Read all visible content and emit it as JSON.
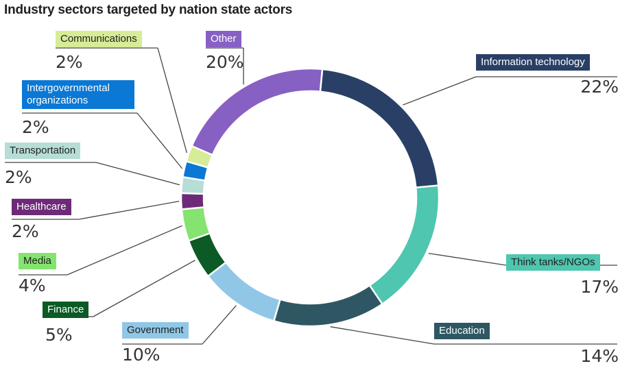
{
  "chart_data": {
    "type": "pie",
    "title": "Industry sectors targeted by nation state actors",
    "categories": [
      "Information technology",
      "Think tanks/NGOs",
      "Education",
      "Government",
      "Finance",
      "Media",
      "Healthcare",
      "Transportation",
      "Intergovernmental organizations",
      "Communications",
      "Other"
    ],
    "values": [
      22,
      17,
      14,
      10,
      5,
      4,
      2,
      2,
      2,
      2,
      20
    ],
    "value_labels": [
      "22%",
      "17%",
      "14%",
      "10%",
      "5%",
      "4%",
      "2%",
      "2%",
      "2%",
      "2%",
      "20%"
    ],
    "colors": [
      "#293f66",
      "#4fc6af",
      "#2e5763",
      "#90c7e6",
      "#0c5a25",
      "#85e36f",
      "#6e2a78",
      "#b6ddd6",
      "#0a78d4",
      "#d6ec96",
      "#8760c4"
    ],
    "legend": "none",
    "style": "donut"
  }
}
